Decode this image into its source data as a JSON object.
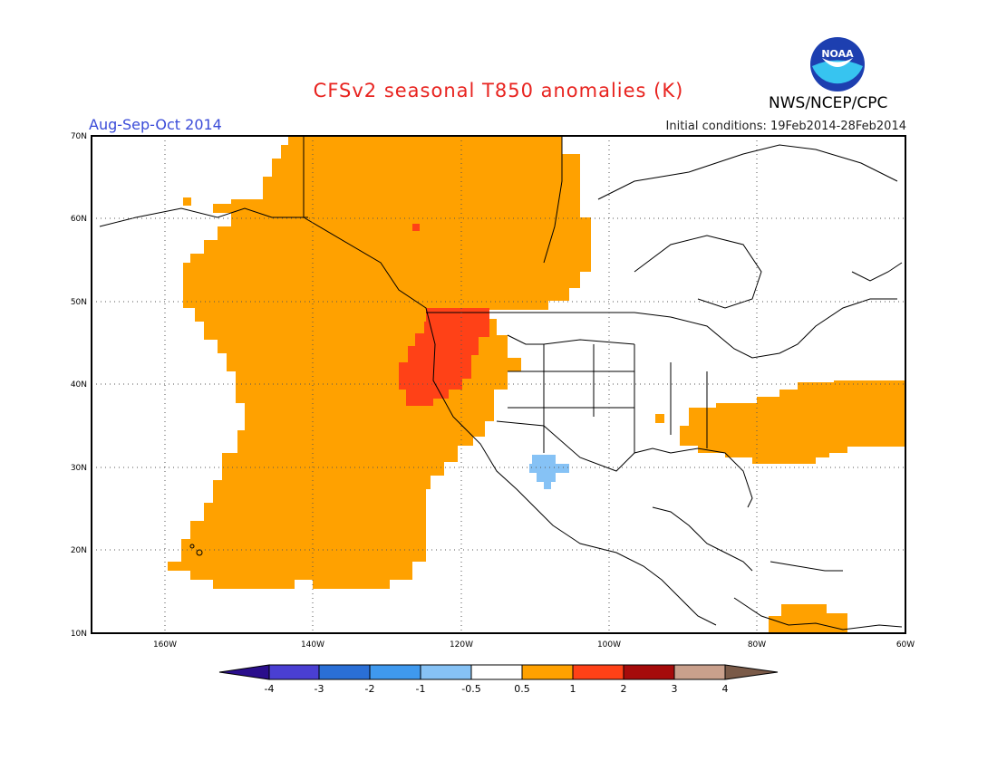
{
  "title": "CFSv2 seasonal T850 anomalies (K)",
  "period": "Aug-Sep-Oct 2014",
  "initial_conditions": "Initial conditions: 19Feb2014-28Feb2014",
  "agency": "NWS/NCEP/CPC",
  "logo_text": "NOAA",
  "lat_labels": [
    "70N",
    "60N",
    "50N",
    "40N",
    "30N",
    "20N",
    "10N"
  ],
  "lon_labels": [
    "160W",
    "140W",
    "120W",
    "100W",
    "80W",
    "60W"
  ],
  "colorbar": {
    "labels": [
      "-4",
      "-3",
      "-2",
      "-1",
      "-0.5",
      "0.5",
      "1",
      "2",
      "3",
      "4"
    ],
    "colors": [
      "#2a0e8c",
      "#4a3fd2",
      "#2a6fd6",
      "#3f99ee",
      "#86c2f5",
      "#ffffff",
      "#ffa100",
      "#ff4117",
      "#a50b0b",
      "#c9a08c",
      "#7a5a48"
    ]
  },
  "colors": {
    "anomaly_0_5_to_1": "#ffa100",
    "anomaly_1_to_2": "#ff4117",
    "anomaly_neg1_to_neg0_5": "#86c2f5"
  }
}
